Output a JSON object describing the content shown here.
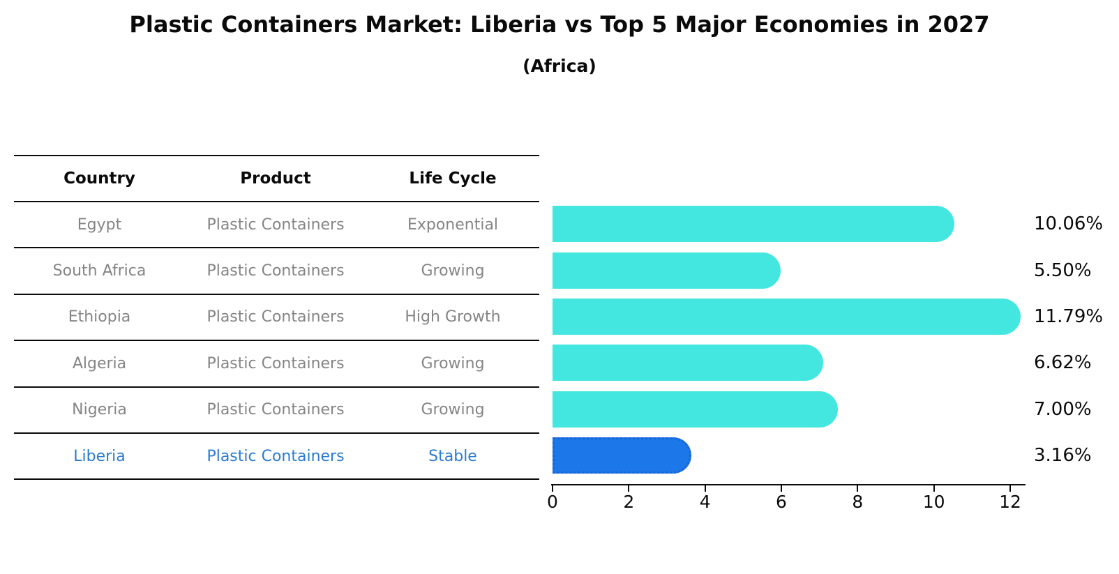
{
  "title": "Plastic Containers Market: Liberia vs Top 5 Major Economies in 2027",
  "subtitle": "(Africa)",
  "table": {
    "headers": [
      "Country",
      "Product",
      "Life Cycle"
    ],
    "rows": [
      {
        "country": "Egypt",
        "product": "Plastic Containers",
        "life_cycle": "Exponential"
      },
      {
        "country": "South Africa",
        "product": "Plastic Containers",
        "life_cycle": "Growing"
      },
      {
        "country": "Ethiopia",
        "product": "Plastic Containers",
        "life_cycle": "High Growth"
      },
      {
        "country": "Algeria",
        "product": "Plastic Containers",
        "life_cycle": "Growing"
      },
      {
        "country": "Nigeria",
        "product": "Plastic Containers",
        "life_cycle": "Growing"
      },
      {
        "country": "Liberia",
        "product": "Plastic Containers",
        "life_cycle": "Stable"
      }
    ]
  },
  "chart_data": {
    "type": "bar",
    "orientation": "horizontal",
    "categories": [
      "Egypt",
      "South Africa",
      "Ethiopia",
      "Algeria",
      "Nigeria",
      "Liberia"
    ],
    "values": [
      10.06,
      5.5,
      11.79,
      6.62,
      7.0,
      3.16
    ],
    "value_labels": [
      "10.06%",
      "5.50%",
      "11.79%",
      "6.62%",
      "7.00%",
      "3.16%"
    ],
    "title": "Plastic Containers Market: Liberia vs Top 5 Major Economies in 2027 (Africa)",
    "xlabel": "",
    "ylabel": "",
    "xlim": [
      0,
      12
    ],
    "xticks": [
      0,
      2,
      4,
      6,
      8,
      10,
      12
    ],
    "grid": false,
    "legend": false,
    "bar_color": "#44e7e0",
    "highlight_bar_color": "#1c77e8",
    "highlight_index": 5
  },
  "colors": {
    "axis": "#0a0a0a",
    "table_row_text": "#858585",
    "highlight_text": "#2b7bd0",
    "bar": "#44e7e0",
    "highlight_bar": "#1c77e8"
  }
}
